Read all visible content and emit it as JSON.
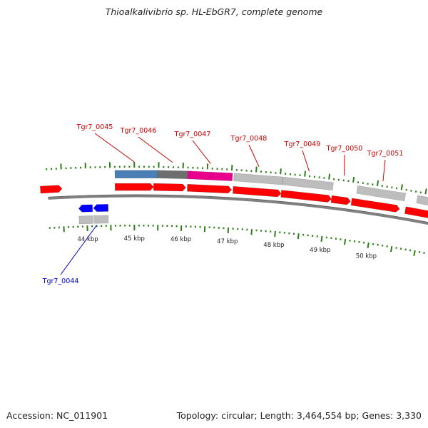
{
  "header": {
    "title": "Thioalkalivibrio sp. HL-EbGR7, complete genome"
  },
  "footer": {
    "accession_label": "Accession: NC_011901",
    "summary": "Topology: circular; Length: 3,464,554 bp; Genes: 3,330"
  },
  "colors": {
    "forward_cds": "#ff0000",
    "reverse_cds": "#0000ff",
    "gene_gray": "#bdbdbd",
    "gene_steelblue": "#4a7fb5",
    "gene_darkgray": "#6e6e6e",
    "gene_magenta": "#e8008c",
    "tick": "#2e7d1a",
    "backbone": "#808080",
    "forward_label": "#cc0000",
    "reverse_label": "#0000cc"
  },
  "axis": {
    "unit": "kbp",
    "labels": [
      "44 kbp",
      "45 kbp",
      "46 kbp",
      "47 kbp",
      "48 kbp",
      "49 kbp",
      "50 kbp"
    ]
  },
  "genes": [
    {
      "locus": "Tgr7_0044",
      "strand": "reverse",
      "cds_color": "reverse_cds"
    },
    {
      "locus": "Tgr7_0045",
      "strand": "forward",
      "cds_color": "forward_cds",
      "gene_color": "gene_steelblue"
    },
    {
      "locus": "Tgr7_0046",
      "strand": "forward",
      "cds_color": "forward_cds",
      "gene_color": "gene_darkgray"
    },
    {
      "locus": "Tgr7_0047",
      "strand": "forward",
      "cds_color": "forward_cds",
      "gene_color": "gene_magenta"
    },
    {
      "locus": "Tgr7_0048",
      "strand": "forward",
      "cds_color": "forward_cds",
      "gene_color": "gene_gray"
    },
    {
      "locus": "Tgr7_0049",
      "strand": "forward",
      "cds_color": "forward_cds",
      "gene_color": "gene_gray"
    },
    {
      "locus": "Tgr7_0050",
      "strand": "forward",
      "cds_color": "forward_cds"
    },
    {
      "locus": "Tgr7_0051",
      "strand": "forward",
      "cds_color": "forward_cds",
      "gene_color": "gene_gray"
    }
  ]
}
